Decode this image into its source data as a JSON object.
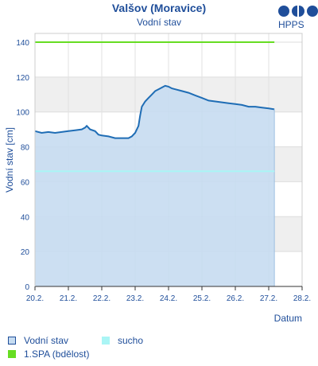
{
  "header": {
    "title": "Valšov (Moravice)",
    "subtitle": "Vodní stav",
    "logo_text": "HPPS"
  },
  "legend": [
    {
      "label": "Vodní stav",
      "color": "#c6dcf1",
      "border": "#1f4e9a"
    },
    {
      "label": "sucho",
      "color": "#aaf5f5"
    },
    {
      "label": "1.SPA (bdělost)",
      "color": "#66dd22"
    }
  ],
  "chart_data": {
    "type": "area",
    "title": "Valšov (Moravice)",
    "subtitle": "Vodní stav",
    "xlabel": "Datum",
    "ylabel": "Vodní stav [cm]",
    "x_ticks": [
      "20.2.",
      "21.2.",
      "22.2.",
      "23.2.",
      "24.2.",
      "25.2.",
      "26.2.",
      "27.2.",
      "28.2."
    ],
    "xlim_days": [
      0,
      8
    ],
    "ylim": [
      0,
      145
    ],
    "y_ticks": [
      0,
      20,
      40,
      60,
      80,
      100,
      120,
      140
    ],
    "grid": true,
    "legend_position": "bottom",
    "thresholds": [
      {
        "name": "1.SPA (bdělost)",
        "value": 140,
        "color": "#66dd22"
      },
      {
        "name": "sucho",
        "value": 66,
        "color": "#aaf5f5"
      }
    ],
    "series": [
      {
        "name": "Vodní stav",
        "color": "#1f6db5",
        "fill": "#c6dcf1",
        "points": [
          [
            0.0,
            89
          ],
          [
            0.2,
            88
          ],
          [
            0.4,
            88.5
          ],
          [
            0.6,
            88
          ],
          [
            0.8,
            88.5
          ],
          [
            1.0,
            89
          ],
          [
            1.2,
            89.5
          ],
          [
            1.4,
            90
          ],
          [
            1.5,
            91
          ],
          [
            1.55,
            92
          ],
          [
            1.65,
            90
          ],
          [
            1.8,
            89
          ],
          [
            1.9,
            87
          ],
          [
            2.0,
            86.5
          ],
          [
            2.2,
            86
          ],
          [
            2.4,
            85
          ],
          [
            2.6,
            85
          ],
          [
            2.8,
            85
          ],
          [
            2.9,
            86
          ],
          [
            3.0,
            88
          ],
          [
            3.1,
            92
          ],
          [
            3.15,
            98
          ],
          [
            3.2,
            103
          ],
          [
            3.3,
            106
          ],
          [
            3.4,
            108
          ],
          [
            3.5,
            110
          ],
          [
            3.6,
            112
          ],
          [
            3.7,
            113
          ],
          [
            3.8,
            114
          ],
          [
            3.9,
            115
          ],
          [
            4.0,
            114.5
          ],
          [
            4.1,
            113.5
          ],
          [
            4.2,
            113
          ],
          [
            4.4,
            112
          ],
          [
            4.6,
            111
          ],
          [
            4.8,
            109.5
          ],
          [
            5.0,
            108
          ],
          [
            5.2,
            106.5
          ],
          [
            5.4,
            106
          ],
          [
            5.6,
            105.5
          ],
          [
            5.8,
            105
          ],
          [
            6.0,
            104.5
          ],
          [
            6.2,
            104
          ],
          [
            6.4,
            103
          ],
          [
            6.6,
            103
          ],
          [
            6.8,
            102.5
          ],
          [
            7.0,
            102
          ],
          [
            7.17,
            101.5
          ]
        ]
      }
    ]
  }
}
